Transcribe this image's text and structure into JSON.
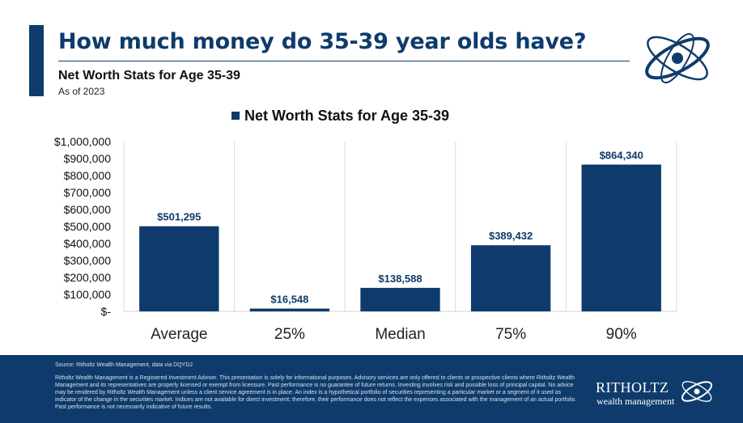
{
  "header": {
    "title": "How much money do 35-39 year olds have?",
    "subtitle": "Net Worth Stats for Age 35-39",
    "as_of": "As of 2023"
  },
  "chart_data": {
    "type": "bar",
    "legend": {
      "label": "Net Worth Stats for Age 35-39",
      "position": "top"
    },
    "categories": [
      "Average",
      "25%",
      "Median",
      "75%",
      "90%"
    ],
    "values": [
      501295,
      16548,
      138588,
      389432,
      864340
    ],
    "data_labels": [
      "$501,295",
      "$16,548",
      "$138,588",
      "$389,432",
      "$864,340"
    ],
    "ylim": [
      0,
      1000000
    ],
    "yticks": [
      0,
      100000,
      200000,
      300000,
      400000,
      500000,
      600000,
      700000,
      800000,
      900000,
      1000000
    ],
    "ytick_labels": [
      "$-",
      "$100,000",
      "$200,000",
      "$300,000",
      "$400,000",
      "$500,000",
      "$600,000",
      "$700,000",
      "$800,000",
      "$900,000",
      "$1,000,000"
    ],
    "grid": "vertical-separators",
    "bar_color": "#0e3b6b"
  },
  "footer": {
    "source": "Source: Ritholtz Wealth Management, data via DQYDJ",
    "disclaimer": "Ritholtz Wealth Management is a Registered Investment Adviser. This presentation is solely for informational purposes. Advisory services are only offered to clients or prospective clients where Ritholtz Wealth Management and its representatives are properly licensed or exempt from licensure. Past performance is no guarantee of future returns. Investing involves risk and possible loss of principal capital. No advice may be rendered by Ritholtz Wealth Management unless a client service agreement is in place. An index is a hypothetical portfolio of securities representing a particular market or a segment of it used as indicator of the change in the securities market. Indices are not available for direct investment; therefore, their performance does not reflect the expenses associated with the management of an actual portfolio. Past performance is not necessarily indicative of future results.",
    "brand_name": "RITHOLTZ",
    "brand_tagline": "wealth management"
  },
  "colors": {
    "primary": "#0e3b6b",
    "text": "#111111",
    "grid": "#d9d9d9"
  },
  "icons": {
    "header_logo": "atom-orbit-logo-icon",
    "footer_logo": "atom-orbit-logo-icon"
  }
}
